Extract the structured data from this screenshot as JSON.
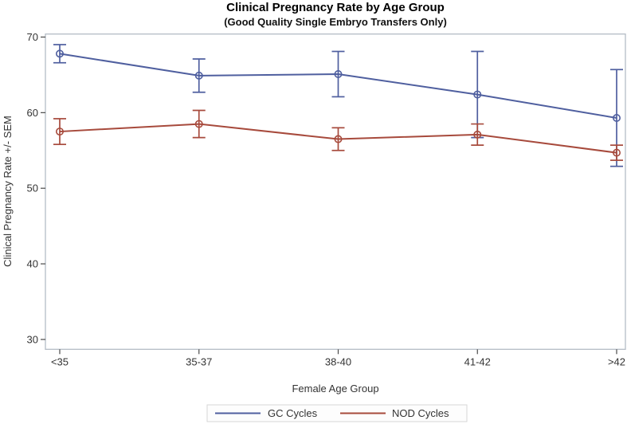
{
  "chart_data": {
    "type": "line",
    "title": "Clinical Pregnancy Rate by Age Group",
    "subtitle": "(Good Quality Single Embryo Transfers Only)",
    "xlabel": "Female Age Group",
    "ylabel": "Clinical Pregnancy Rate +/- SEM",
    "categories": [
      "<35",
      "35-37",
      "38-40",
      "41-42",
      ">42"
    ],
    "series": [
      {
        "name": "GC Cycles",
        "color": "#4f5f9f",
        "values": [
          67.8,
          64.9,
          65.1,
          62.4,
          59.3
        ],
        "sem": [
          1.2,
          2.2,
          3.0,
          5.7,
          6.4
        ]
      },
      {
        "name": "NOD Cycles",
        "color": "#a74a3c",
        "values": [
          57.5,
          58.5,
          56.5,
          57.1,
          54.7
        ],
        "sem": [
          1.7,
          1.8,
          1.5,
          1.4,
          1.0
        ]
      }
    ],
    "ylim": [
      30,
      70
    ],
    "yticks": [
      30,
      40,
      50,
      60,
      70
    ],
    "grid": false,
    "error_bars": true,
    "marker": "open-circle",
    "legend_position": "bottom"
  },
  "colors": {
    "axis_border": "#b4bcc6",
    "tick": "#4a4a4a",
    "text": "#333333",
    "legend_border": "#d6d6d6",
    "legend_background": "#fdfdfd",
    "background": "#ffffff",
    "series_blue": "#4f5f9f",
    "series_red": "#a74a3c"
  }
}
